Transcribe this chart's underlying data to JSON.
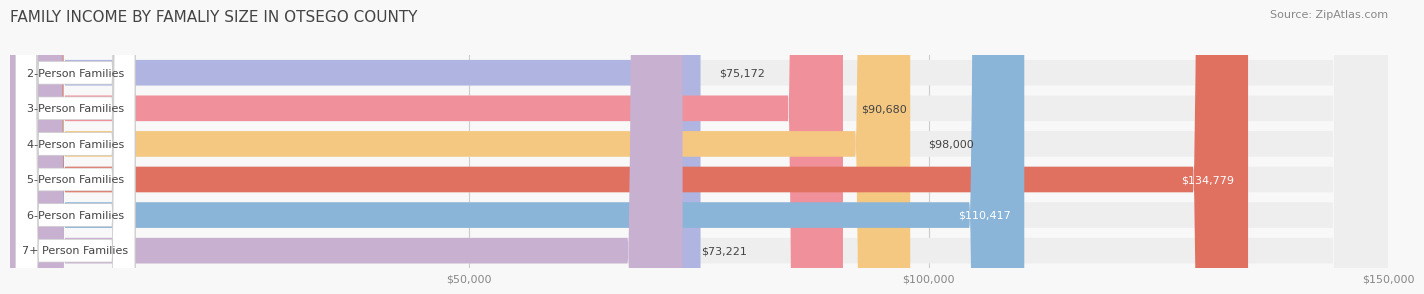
{
  "title": "FAMILY INCOME BY FAMALIY SIZE IN OTSEGO COUNTY",
  "source": "Source: ZipAtlas.com",
  "categories": [
    "2-Person Families",
    "3-Person Families",
    "4-Person Families",
    "5-Person Families",
    "6-Person Families",
    "7+ Person Families"
  ],
  "values": [
    75172,
    90680,
    98000,
    134779,
    110417,
    73221
  ],
  "bar_colors": [
    "#b0b4e0",
    "#f0909a",
    "#f5c882",
    "#e07060",
    "#8ab4d8",
    "#c8b0d0"
  ],
  "bar_bg_color": "#eeeeee",
  "label_bg_color": "#ffffff",
  "xlim": [
    0,
    150000
  ],
  "xtick_labels": [
    "$50,000",
    "$100,000",
    "$150,000"
  ],
  "xtick_values": [
    50000,
    100000,
    150000
  ],
  "title_fontsize": 11,
  "source_fontsize": 8,
  "label_fontsize": 8,
  "value_fontsize": 8,
  "background_color": "#f8f8f8"
}
